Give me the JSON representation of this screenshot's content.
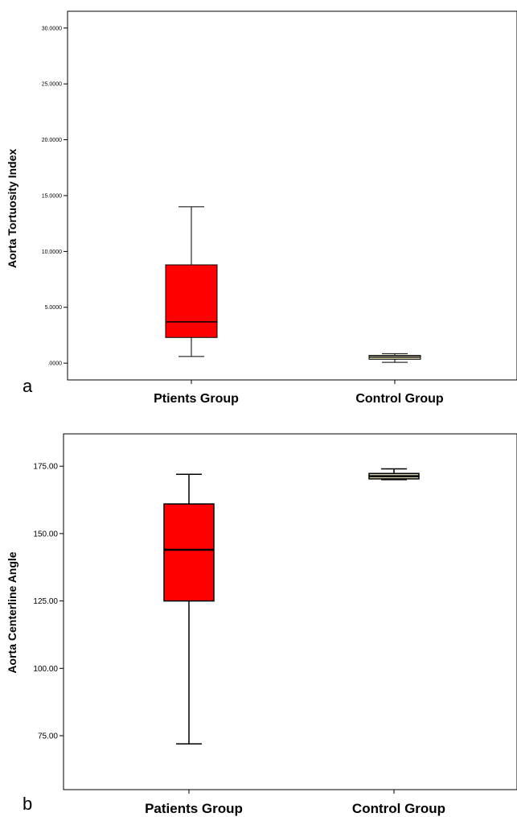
{
  "chart_data": [
    {
      "type": "box",
      "panel_label": "a",
      "ylabel": "Aorta Tortuosity Index",
      "yticks": [
        ".0000",
        "5.0000",
        "10.0000",
        "15.0000",
        "20.0000",
        "25.0000",
        "30.0000"
      ],
      "ylim": [
        -1.5,
        31.5
      ],
      "categories": [
        "Ptients Group",
        "Control Group"
      ],
      "boxes": [
        {
          "min": 0.6,
          "q1": 2.3,
          "median": 3.7,
          "q3": 8.8,
          "max": 14.0
        },
        {
          "min": 0.08,
          "q1": 0.35,
          "median": 0.55,
          "q3": 0.7,
          "max": 0.85
        }
      ],
      "colors": [
        "#ff0000",
        "#d8d2a6"
      ]
    },
    {
      "type": "box",
      "panel_label": "b",
      "ylabel": "Aorta Centerline Angle",
      "yticks": [
        "75.00",
        "100.00",
        "125.00",
        "150.00",
        "175.00"
      ],
      "ylim": [
        55,
        187
      ],
      "categories": [
        "Patients Group",
        "Control Group"
      ],
      "boxes": [
        {
          "min": 72,
          "q1": 125,
          "median": 144,
          "q3": 161,
          "max": 172
        },
        {
          "min": 170,
          "q1": 170.3,
          "median": 171.3,
          "q3": 172.3,
          "max": 174
        }
      ],
      "colors": [
        "#ff0000",
        "#d8d2a6"
      ]
    }
  ]
}
